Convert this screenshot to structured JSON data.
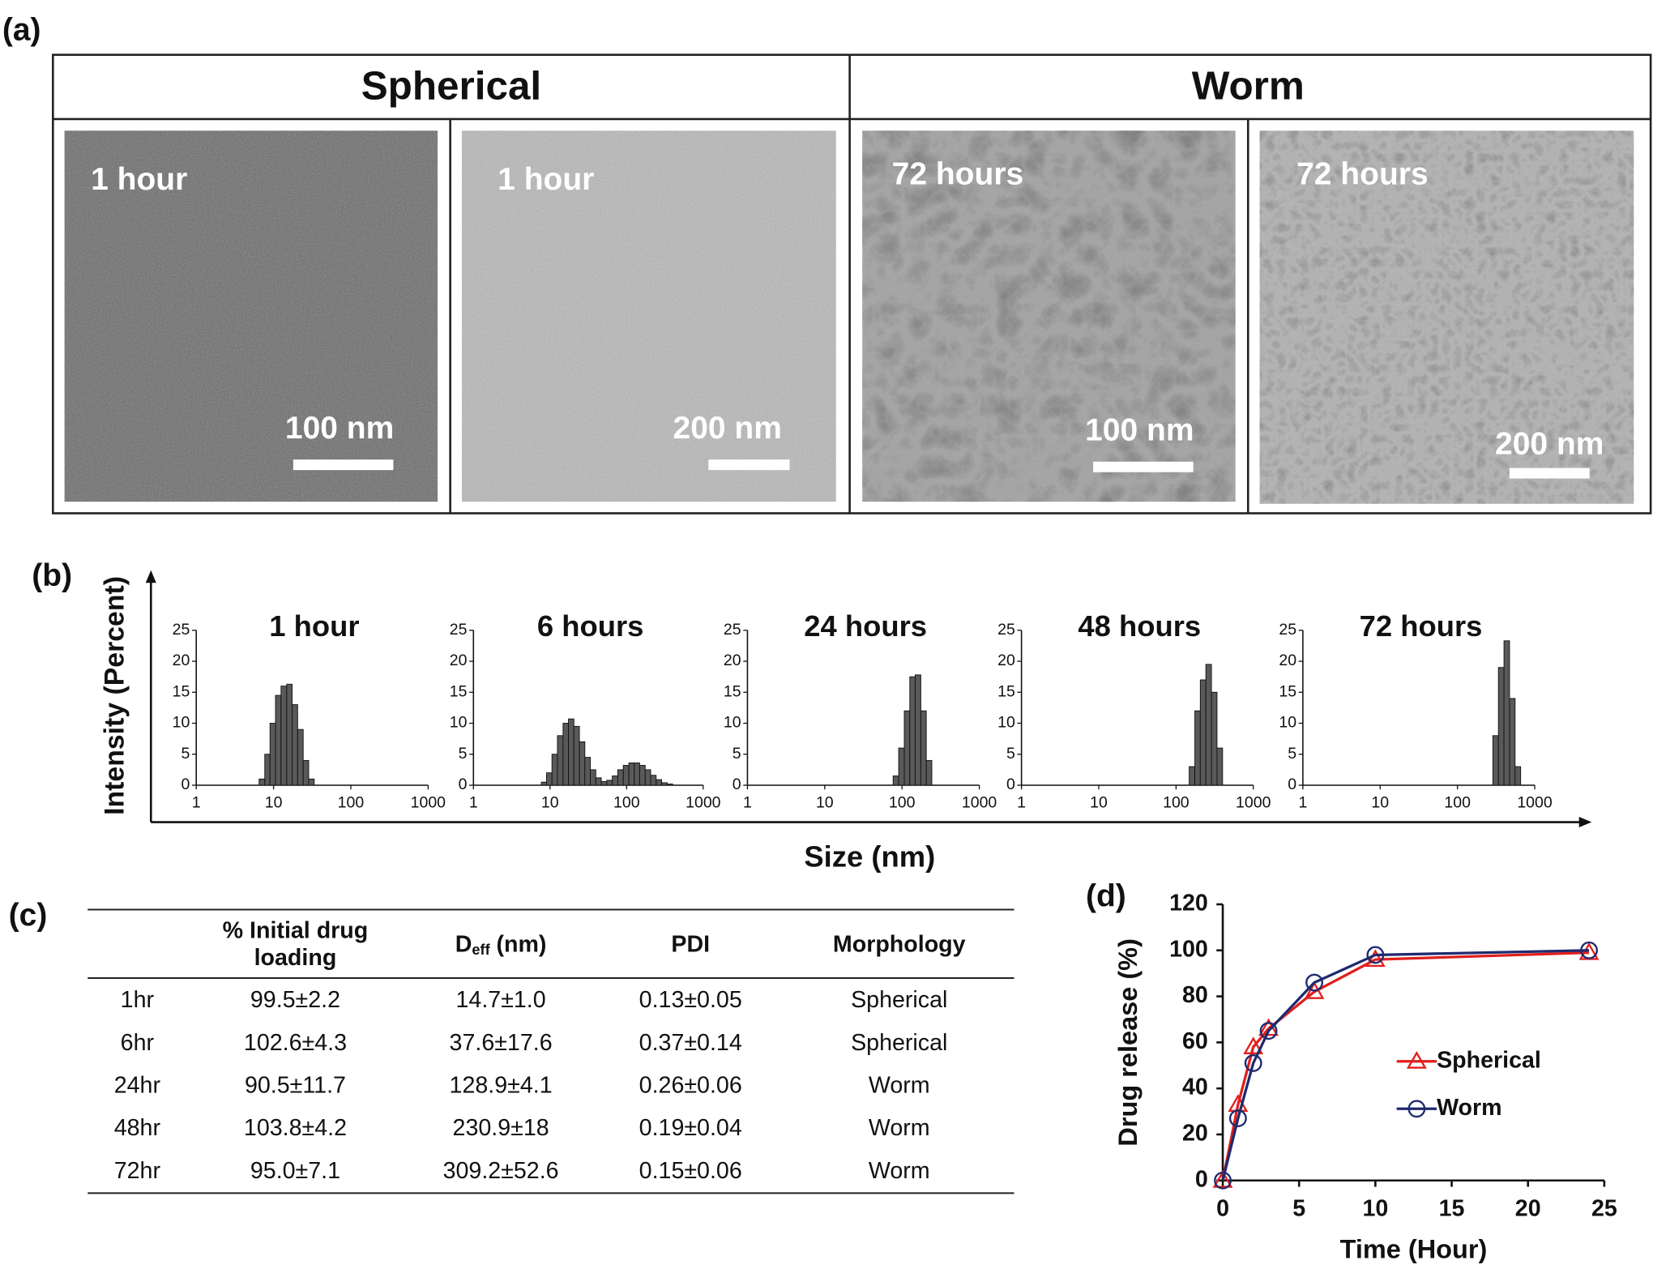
{
  "figure_labels": [
    "(a)",
    "(b)",
    "(c)",
    "(d)"
  ],
  "micrographs": {
    "headers": [
      "Spherical",
      "Worm"
    ],
    "images": [
      {
        "time": "1 hour",
        "scale_bar": "100 nm"
      },
      {
        "time": "1 hour",
        "scale_bar": "200 nm"
      },
      {
        "time": "72 hours",
        "scale_bar": "100 nm"
      },
      {
        "time": "72 hours",
        "scale_bar": "200 nm"
      }
    ]
  },
  "dls": {
    "ylabel": "Intensity (Percent)",
    "xlabel": "Size (nm)"
  },
  "table": {
    "header": {
      "loading": [
        "% Initial drug",
        "loading"
      ],
      "deff": {
        "main": "D",
        "sub": "eff",
        "unit": "(nm)"
      },
      "pdi": "PDI",
      "morphology": "Morphology"
    },
    "rows": [
      [
        "1hr",
        "99.5±2.2",
        "14.7±1.0",
        "0.13±0.05",
        "Spherical"
      ],
      [
        "6hr",
        "102.6±4.3",
        "37.6±17.6",
        "0.37±0.14",
        "Spherical"
      ],
      [
        "24hr",
        "90.5±11.7",
        "128.9±4.1",
        "0.26±0.06",
        "Worm"
      ],
      [
        "48hr",
        "103.8±4.2",
        "230.9±18",
        "0.19±0.04",
        "Worm"
      ],
      [
        "72hr",
        "95.0±7.1",
        "309.2±52.6",
        "0.15±0.06",
        "Worm"
      ]
    ]
  },
  "chart_data": [
    {
      "type": "histogram",
      "title": "1 hour",
      "color": "#595959",
      "log_x": true,
      "bins": [
        6.5,
        7.7,
        9.0,
        10.6,
        12.5,
        14.8,
        17.4,
        20.5,
        24.2,
        28.5,
        33.6
      ],
      "counts": [
        1,
        5,
        10,
        14.5,
        16,
        16.3,
        13,
        9,
        4,
        1
      ],
      "xlim": [
        1,
        1000
      ],
      "xticks": [
        1,
        10,
        100,
        1000
      ],
      "ylim": [
        0,
        25
      ],
      "yticks": [
        0,
        5,
        10,
        15,
        20,
        25
      ]
    },
    {
      "type": "histogram",
      "title": "6 hours",
      "color": "#595959",
      "log_x": true,
      "bins": [
        7.7,
        9.0,
        10.6,
        12.5,
        14.8,
        17.4,
        20.5,
        24.2,
        28.5,
        33.6,
        39.6,
        46.7,
        55.1,
        65,
        76.7,
        90.5,
        107,
        126,
        148,
        175,
        206,
        243,
        287,
        339,
        400
      ],
      "counts": [
        0.5,
        2,
        5,
        8,
        10,
        10.7,
        9.5,
        7,
        4.5,
        2.5,
        1.2,
        0.6,
        0.8,
        1.5,
        2.5,
        3.2,
        3.6,
        3.6,
        3.2,
        2.5,
        1.6,
        0.9,
        0.4,
        0.2
      ],
      "xlim": [
        1,
        1000
      ],
      "xticks": [
        1,
        10,
        100,
        1000
      ],
      "ylim": [
        0,
        25
      ],
      "yticks": [
        0,
        5,
        10,
        15,
        20,
        25
      ]
    },
    {
      "type": "histogram",
      "title": "24 hours",
      "color": "#595959",
      "log_x": true,
      "bins": [
        76.7,
        90.5,
        107,
        126,
        148,
        175,
        206,
        243
      ],
      "counts": [
        1.5,
        6,
        12,
        17.5,
        17.8,
        12,
        4
      ],
      "xlim": [
        1,
        1000
      ],
      "xticks": [
        1,
        10,
        100,
        1000
      ],
      "ylim": [
        0,
        25
      ],
      "yticks": [
        0,
        5,
        10,
        15,
        20,
        25
      ]
    },
    {
      "type": "histogram",
      "title": "48 hours",
      "color": "#595959",
      "log_x": true,
      "bins": [
        148,
        175,
        206,
        243,
        287,
        339,
        400
      ],
      "counts": [
        3,
        12,
        17,
        19.5,
        15,
        6
      ],
      "xlim": [
        1,
        1000
      ],
      "xticks": [
        1,
        10,
        100,
        1000
      ],
      "ylim": [
        0,
        25
      ],
      "yticks": [
        0,
        5,
        10,
        15,
        20,
        25
      ]
    },
    {
      "type": "histogram",
      "title": "72 hours",
      "color": "#595959",
      "log_x": true,
      "bins": [
        287,
        339,
        400,
        472,
        557,
        657
      ],
      "counts": [
        8,
        19,
        23.3,
        14,
        3
      ],
      "xlim": [
        1,
        1000
      ],
      "xticks": [
        1,
        10,
        100,
        1000
      ],
      "ylim": [
        0,
        25
      ],
      "yticks": [
        0,
        5,
        10,
        15,
        20,
        25
      ]
    },
    {
      "type": "line",
      "xlabel": "Time (Hour)",
      "ylabel": "Drug release (%)",
      "legend": "center right",
      "x": [
        0,
        1,
        2,
        3,
        6,
        10,
        24
      ],
      "series": [
        {
          "name": "Spherical",
          "color": "#e0201c",
          "marker": "triangle",
          "values": [
            0,
            33,
            58,
            66,
            82,
            96,
            99
          ]
        },
        {
          "name": "Worm",
          "color": "#1f2a6e",
          "marker": "circle",
          "values": [
            0,
            27,
            51,
            65,
            86,
            98,
            100
          ]
        }
      ],
      "xlim": [
        0,
        25
      ],
      "xticks": [
        0,
        5,
        10,
        15,
        20,
        25
      ],
      "ylim": [
        0,
        120
      ],
      "yticks": [
        0,
        20,
        40,
        60,
        80,
        100,
        120
      ]
    }
  ]
}
